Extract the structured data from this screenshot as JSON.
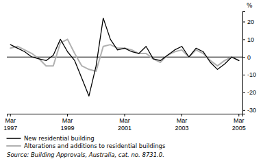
{
  "chart_data": {
    "type": "line",
    "y_label": "%",
    "annotations": [
      "Source: Building Approvals, Australia, cat. no.  8731.0."
    ],
    "categories": [
      "Mar\n1997",
      null,
      null,
      null,
      null,
      null,
      null,
      null,
      "Mar\n1999",
      null,
      null,
      null,
      null,
      null,
      null,
      null,
      "Mar\n2001",
      null,
      null,
      null,
      null,
      null,
      null,
      null,
      "Mar\n2003",
      null,
      null,
      null,
      null,
      null,
      null,
      null,
      "Mar\n2005"
    ],
    "series": [
      {
        "name": "New residential building",
        "color": "#000000",
        "values": [
          7,
          5,
          3,
          0,
          -1,
          -2,
          1,
          10,
          3,
          -2,
          -12,
          -22,
          -5,
          22,
          10,
          4,
          5,
          3,
          2,
          6,
          -1,
          -2,
          1,
          4,
          6,
          0,
          5,
          3,
          -3,
          -7,
          -4,
          0,
          -2
        ]
      },
      {
        "name": "Alterations and additions to residential buildings",
        "color": "#b0b0b0",
        "values": [
          5,
          6,
          4,
          2,
          -1,
          -5,
          -5,
          8,
          10,
          2,
          -5,
          -7,
          -8,
          6,
          7,
          5,
          5,
          4,
          2,
          2,
          -1,
          -3,
          1,
          3,
          4,
          0,
          4,
          2,
          -2,
          -5,
          -2,
          0,
          -2
        ]
      }
    ],
    "ylim": [
      -32,
      26
    ],
    "yticks": [
      -30,
      -20,
      -10,
      0,
      10,
      20
    ],
    "grid": false,
    "legend": "bottom"
  }
}
